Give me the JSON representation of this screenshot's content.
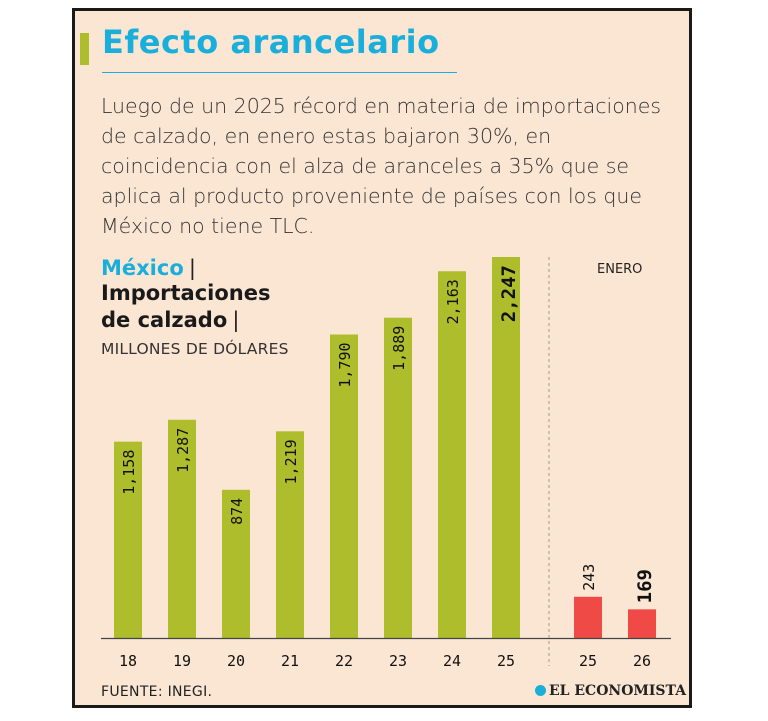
{
  "card": {
    "title": "Efecto arancelario",
    "intro": "Luego de un 2025 récord en materia de importaciones de calzado, en enero estas bajaron 30%, en coincidencia con el alza de aranceles a 35% que se aplica al producto proveniente de países con los que México no tiene TLC.",
    "country": "México",
    "subject_line1": "Importaciones",
    "subject_line2": "de calzado",
    "units": "MILLONES DE DÓLARES",
    "source": "FUENTE: INEGI.",
    "brand": "EL ECONOMISTA"
  },
  "colors": {
    "annual": "#aebd2c",
    "january": "#ef4a45",
    "accent": "#1aaedb",
    "background": "#fbe6d4"
  },
  "chart_data": [
    {
      "type": "bar",
      "categories": [
        "18",
        "19",
        "20",
        "21",
        "22",
        "23",
        "24",
        "25"
      ],
      "values": [
        1158,
        1287,
        874,
        1219,
        1790,
        1889,
        2163,
        2247
      ],
      "value_labels": [
        "1,158",
        "1,287",
        "874",
        "1,219",
        "1,790",
        "1,889",
        "2,163",
        "2,247"
      ],
      "highlight_index": 7,
      "ylim": [
        0,
        2247
      ]
    },
    {
      "type": "bar",
      "period_label": "ENERO",
      "categories": [
        "25",
        "26"
      ],
      "values": [
        243,
        169
      ],
      "value_labels": [
        "243",
        "169"
      ],
      "highlight_index": 1,
      "ylim": [
        0,
        2247
      ]
    }
  ]
}
